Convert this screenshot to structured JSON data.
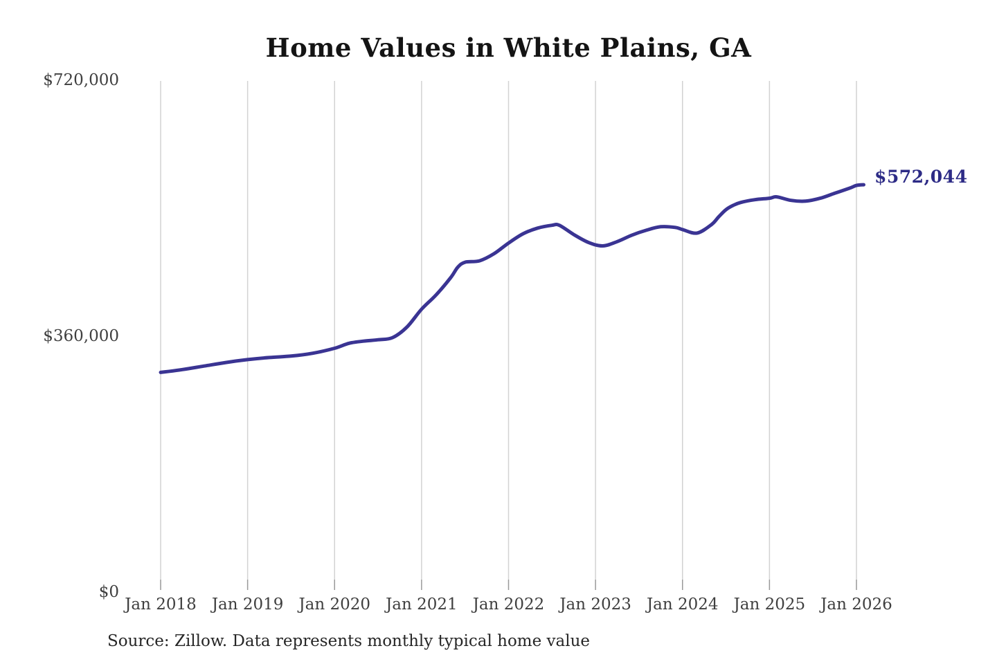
{
  "chart_data": {
    "type": "line",
    "title": "Home Values in White Plains, GA",
    "source_note": "Source: Zillow. Data represents monthly typical home value",
    "end_label": {
      "text": "$572,044",
      "value": 572044,
      "color": "#2d2b86"
    },
    "xlabel": "",
    "ylabel": "",
    "ylim": [
      0,
      720000
    ],
    "grid": "vertical-only",
    "legend": "none",
    "colors": {
      "line": "#3a3493",
      "gridline": "#d2d2d2",
      "tick": "#999999",
      "axis_text": "#3f3f3f",
      "title": "#141414",
      "background": "#ffffff"
    },
    "y_ticks": [
      {
        "label": "$720,000",
        "value": 720000
      },
      {
        "label": "$360,000",
        "value": 360000
      },
      {
        "label": "$0",
        "value": 0
      }
    ],
    "x_ticks": [
      {
        "label": "Jan 2018",
        "year": 2018
      },
      {
        "label": "Jan 2019",
        "year": 2019
      },
      {
        "label": "Jan 2020",
        "year": 2020
      },
      {
        "label": "Jan 2021",
        "year": 2021
      },
      {
        "label": "Jan 2022",
        "year": 2022
      },
      {
        "label": "Jan 2023",
        "year": 2023
      },
      {
        "label": "Jan 2024",
        "year": 2024
      },
      {
        "label": "Jan 2025",
        "year": 2025
      },
      {
        "label": "Jan 2026",
        "year": 2026
      }
    ],
    "series": [
      {
        "name": "Monthly typical home value",
        "color": "#3a3493",
        "points": [
          [
            "2018-01",
            308000
          ],
          [
            "2018-04",
            312000
          ],
          [
            "2018-07",
            317000
          ],
          [
            "2018-10",
            322000
          ],
          [
            "2019-01",
            326000
          ],
          [
            "2019-04",
            329000
          ],
          [
            "2019-07",
            331000
          ],
          [
            "2019-10",
            335000
          ],
          [
            "2020-01",
            342000
          ],
          [
            "2020-03",
            349000
          ],
          [
            "2020-05",
            352000
          ],
          [
            "2020-07",
            354000
          ],
          [
            "2020-09",
            357000
          ],
          [
            "2020-11",
            372000
          ],
          [
            "2021-01",
            397000
          ],
          [
            "2021-03",
            417000
          ],
          [
            "2021-05",
            441000
          ],
          [
            "2021-06",
            456000
          ],
          [
            "2021-07",
            463000
          ],
          [
            "2021-09",
            465000
          ],
          [
            "2021-11",
            475000
          ],
          [
            "2022-01",
            490000
          ],
          [
            "2022-03",
            503000
          ],
          [
            "2022-05",
            511000
          ],
          [
            "2022-07",
            515000
          ],
          [
            "2022-08",
            515000
          ],
          [
            "2022-10",
            502000
          ],
          [
            "2022-12",
            491000
          ],
          [
            "2023-02",
            486000
          ],
          [
            "2023-04",
            492000
          ],
          [
            "2023-06",
            501000
          ],
          [
            "2023-08",
            508000
          ],
          [
            "2023-10",
            513000
          ],
          [
            "2023-12",
            512000
          ],
          [
            "2024-01",
            509000
          ],
          [
            "2024-03",
            504000
          ],
          [
            "2024-05",
            516000
          ],
          [
            "2024-06",
            527000
          ],
          [
            "2024-07",
            537000
          ],
          [
            "2024-08",
            543000
          ],
          [
            "2024-09",
            547000
          ],
          [
            "2024-11",
            551000
          ],
          [
            "2025-01",
            553000
          ],
          [
            "2025-02",
            555000
          ],
          [
            "2025-04",
            550000
          ],
          [
            "2025-06",
            549000
          ],
          [
            "2025-08",
            553000
          ],
          [
            "2025-10",
            560000
          ],
          [
            "2025-12",
            567000
          ],
          [
            "2026-01",
            571000
          ],
          [
            "2026-02",
            572044
          ]
        ]
      }
    ]
  }
}
